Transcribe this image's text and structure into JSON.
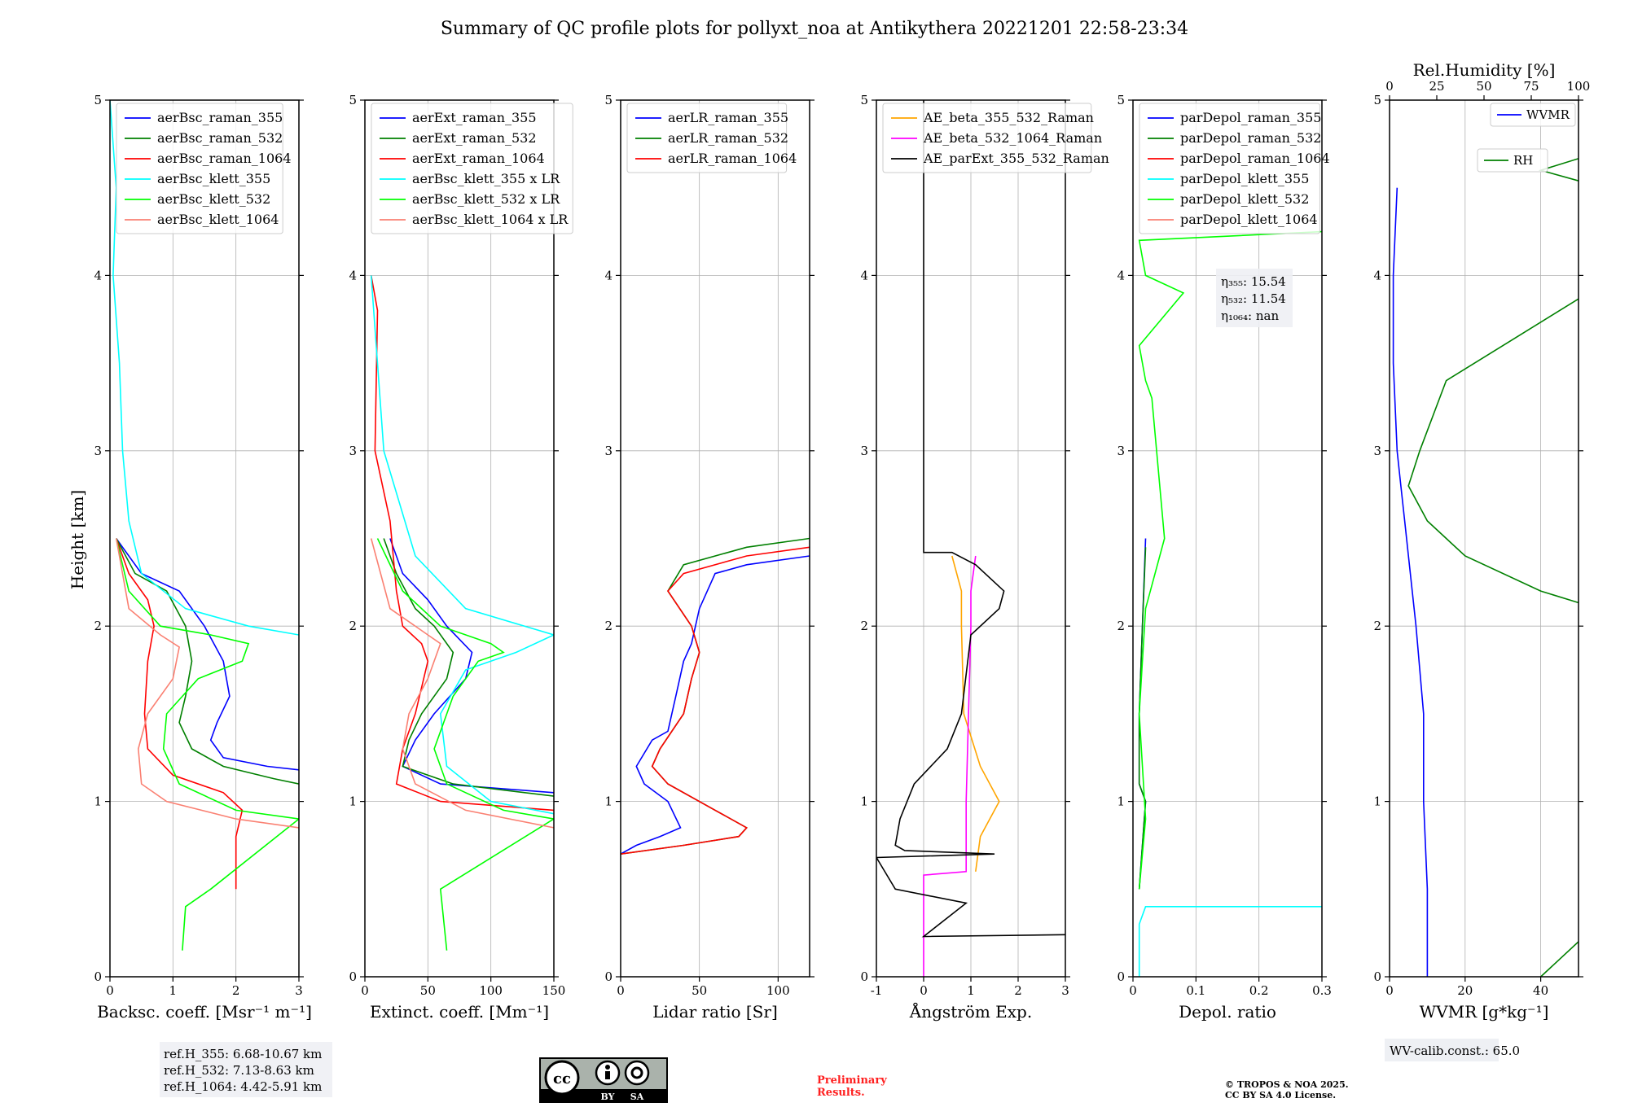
{
  "figure": {
    "title": "Summary of QC profile plots for pollyxt_noa at Antikythera 20221201 22:58-23:34",
    "ylabel": "Height [km]",
    "ref_heights": [
      "ref.H_355: 6.68-10.67 km",
      "ref.H_532: 7.13-8.63 km",
      "ref.H_1064: 4.42-5.91 km"
    ],
    "license_badge": {
      "cc": "cc",
      "by": "BY",
      "sa": "SA"
    },
    "preliminary": [
      "Preliminary",
      "Results."
    ],
    "copyright": [
      "© TROPOS & NOA 2025.",
      "CC BY SA 4.0 License."
    ],
    "wv_calib": "WV-calib.const.: 65.0",
    "eta_labels": [
      "η₃₅₅: 15.54",
      "η₅₃₂: 11.54",
      "η₁₀₆₄: nan"
    ],
    "colors": {
      "blue": "#0000ff",
      "green": "#008000",
      "red": "#ff0000",
      "cyan": "#00ffff",
      "lime": "#00ff00",
      "salmon": "#fa8072",
      "orange": "#ffa500",
      "magenta": "#ff00ff",
      "black": "#000000"
    }
  },
  "chart_data": [
    {
      "type": "line",
      "xlabel": "Backsc. coeff. [Msr⁻¹ m⁻¹]",
      "xlim": [
        0,
        3
      ],
      "ylim": [
        0,
        5
      ],
      "xticks": [
        0,
        1,
        2,
        3
      ],
      "yticks": [
        0,
        1,
        2,
        3,
        4,
        5
      ],
      "legend": "top-left",
      "series": [
        {
          "name": "aerBsc_raman_355",
          "color": "#0000ff",
          "x": [
            0.1,
            0.5,
            1.1,
            1.5,
            1.8,
            1.9,
            1.7,
            1.6,
            1.8,
            2.5,
            3.0
          ],
          "y": [
            2.5,
            2.3,
            2.2,
            2.0,
            1.8,
            1.6,
            1.45,
            1.35,
            1.25,
            1.2,
            1.18
          ]
        },
        {
          "name": "aerBsc_raman_532",
          "color": "#008000",
          "x": [
            0.1,
            0.4,
            0.9,
            1.2,
            1.3,
            1.2,
            1.1,
            1.3,
            1.8,
            2.6,
            3.0
          ],
          "y": [
            2.5,
            2.3,
            2.2,
            2.0,
            1.8,
            1.6,
            1.45,
            1.3,
            1.2,
            1.13,
            1.1
          ]
        },
        {
          "name": "aerBsc_raman_1064",
          "color": "#ff0000",
          "x": [
            0.1,
            0.3,
            0.6,
            0.7,
            0.6,
            0.55,
            0.6,
            1.0,
            1.8,
            2.1,
            2.0,
            2.0
          ],
          "y": [
            2.5,
            2.3,
            2.15,
            2.0,
            1.8,
            1.5,
            1.3,
            1.15,
            1.05,
            0.95,
            0.8,
            0.5
          ]
        },
        {
          "name": "aerBsc_klett_355",
          "color": "#00ffff",
          "x": [
            0.0,
            0.1,
            0.05,
            0.15,
            0.2,
            0.3,
            0.5,
            1.2,
            2.2,
            3.0
          ],
          "y": [
            5.0,
            4.5,
            4.0,
            3.5,
            3.0,
            2.6,
            2.3,
            2.1,
            2.0,
            1.95
          ]
        },
        {
          "name": "aerBsc_klett_532",
          "color": "#00ff00",
          "x": [
            0.1,
            0.3,
            0.8,
            1.6,
            2.2,
            2.1,
            1.4,
            0.9,
            0.85,
            1.1,
            2.0,
            3.0,
            1.6,
            1.2,
            1.15
          ],
          "y": [
            2.5,
            2.2,
            2.0,
            1.95,
            1.9,
            1.8,
            1.7,
            1.5,
            1.3,
            1.1,
            0.95,
            0.9,
            0.5,
            0.4,
            0.15
          ]
        },
        {
          "name": "aerBsc_klett_1064",
          "color": "#fa8072",
          "x": [
            0.1,
            0.3,
            0.8,
            1.1,
            1.0,
            0.6,
            0.45,
            0.5,
            0.9,
            2.0,
            3.0
          ],
          "y": [
            2.5,
            2.1,
            1.95,
            1.88,
            1.7,
            1.5,
            1.3,
            1.1,
            1.0,
            0.9,
            0.85
          ]
        }
      ],
      "annotation": ""
    },
    {
      "type": "line",
      "xlabel": "Extinct. coeff. [Mm⁻¹]",
      "xlim": [
        0,
        150
      ],
      "ylim": [
        0,
        5
      ],
      "xticks": [
        0,
        50,
        100,
        150
      ],
      "yticks": [
        0,
        1,
        2,
        3,
        4,
        5
      ],
      "legend": "top-left",
      "series": [
        {
          "name": "aerExt_raman_355",
          "color": "#0000ff",
          "x": [
            20,
            30,
            50,
            65,
            85,
            80,
            55,
            40,
            30,
            60,
            150
          ],
          "y": [
            2.5,
            2.3,
            2.15,
            2.0,
            1.85,
            1.7,
            1.5,
            1.35,
            1.2,
            1.1,
            1.05
          ]
        },
        {
          "name": "aerExt_raman_532",
          "color": "#008000",
          "x": [
            15,
            25,
            40,
            55,
            70,
            65,
            45,
            35,
            30,
            70,
            150
          ],
          "y": [
            2.5,
            2.3,
            2.1,
            2.0,
            1.85,
            1.7,
            1.5,
            1.35,
            1.2,
            1.1,
            1.03
          ]
        },
        {
          "name": "aerExt_raman_1064",
          "color": "#ff0000",
          "x": [
            5,
            10,
            8,
            20,
            25,
            30,
            45,
            50,
            40,
            30,
            25,
            60,
            150
          ],
          "y": [
            4.0,
            3.8,
            3.0,
            2.6,
            2.2,
            2.0,
            1.9,
            1.8,
            1.5,
            1.3,
            1.1,
            1.0,
            0.95
          ]
        },
        {
          "name": "aerBsc_klett_355 x LR",
          "color": "#00ffff",
          "x": [
            5,
            15,
            40,
            80,
            150,
            120,
            80,
            60,
            65,
            100,
            150
          ],
          "y": [
            4.0,
            3.0,
            2.4,
            2.1,
            1.95,
            1.85,
            1.75,
            1.5,
            1.2,
            1.0,
            0.93
          ]
        },
        {
          "name": "aerBsc_klett_532 x LR",
          "color": "#00ff00",
          "x": [
            10,
            30,
            60,
            100,
            110,
            90,
            70,
            55,
            65,
            110,
            150,
            60,
            65
          ],
          "y": [
            2.5,
            2.2,
            2.0,
            1.9,
            1.85,
            1.8,
            1.6,
            1.3,
            1.1,
            0.95,
            0.9,
            0.5,
            0.15
          ]
        },
        {
          "name": "aerBsc_klett_1064 x LR",
          "color": "#fa8072",
          "x": [
            5,
            20,
            50,
            60,
            50,
            35,
            30,
            40,
            80,
            150
          ],
          "y": [
            2.5,
            2.1,
            1.95,
            1.9,
            1.7,
            1.5,
            1.3,
            1.1,
            0.95,
            0.85
          ]
        }
      ],
      "annotation": ""
    },
    {
      "type": "line",
      "xlabel": "Lidar ratio [Sr]",
      "xlim": [
        0,
        120
      ],
      "ylim": [
        0,
        5
      ],
      "xticks": [
        0,
        50,
        100
      ],
      "yticks": [
        0,
        1,
        2,
        3,
        4,
        5
      ],
      "legend": "top-left",
      "series": [
        {
          "name": "aerLR_raman_355",
          "color": "#0000ff",
          "x": [
            0,
            10,
            25,
            38,
            30,
            15,
            10,
            20,
            30,
            35,
            40,
            45,
            50,
            60,
            80,
            120
          ],
          "y": [
            0.7,
            0.75,
            0.8,
            0.85,
            1.0,
            1.1,
            1.2,
            1.35,
            1.4,
            1.6,
            1.8,
            1.9,
            2.1,
            2.3,
            2.35,
            2.4
          ]
        },
        {
          "name": "aerLR_raman_532",
          "color": "#008000",
          "x": [
            0,
            40,
            75,
            80,
            60,
            30,
            20,
            25,
            40,
            45,
            50,
            45,
            30,
            40,
            80,
            120
          ],
          "y": [
            0.7,
            0.75,
            0.8,
            0.85,
            0.95,
            1.1,
            1.2,
            1.3,
            1.5,
            1.7,
            1.85,
            2.0,
            2.2,
            2.35,
            2.45,
            2.5
          ]
        },
        {
          "name": "aerLR_raman_1064",
          "color": "#ff0000",
          "x": [
            0,
            40,
            75,
            80,
            60,
            30,
            20,
            25,
            40,
            45,
            50,
            45,
            30,
            40,
            80,
            120
          ],
          "y": [
            0.7,
            0.75,
            0.8,
            0.85,
            0.95,
            1.1,
            1.2,
            1.3,
            1.5,
            1.7,
            1.85,
            2.0,
            2.2,
            2.3,
            2.4,
            2.45
          ]
        }
      ],
      "annotation": ""
    },
    {
      "type": "line",
      "xlabel": "Ångström Exp.",
      "xlim": [
        -1,
        3
      ],
      "ylim": [
        0,
        5
      ],
      "xticks": [
        -1,
        0,
        1,
        2,
        3
      ],
      "yticks": [
        0,
        1,
        2,
        3,
        4,
        5
      ],
      "legend": "top-left",
      "series": [
        {
          "name": "AE_beta_355_532_Raman",
          "color": "#ffa500",
          "x": [
            0.6,
            0.8,
            0.8,
            0.85,
            1.2,
            1.6,
            1.2,
            1.1
          ],
          "y": [
            2.4,
            2.2,
            2.0,
            1.5,
            1.2,
            1.0,
            0.8,
            0.6
          ]
        },
        {
          "name": "AE_beta_532_1064_Raman",
          "color": "#ff00ff",
          "x": [
            1.1,
            1.0,
            1.0,
            0.95,
            0.9,
            0.9,
            0.0,
            0.0
          ],
          "y": [
            2.4,
            2.2,
            2.0,
            1.5,
            1.0,
            0.6,
            0.58,
            0.0
          ]
        },
        {
          "name": "AE_parExt_355_532_Raman",
          "color": "#000000",
          "x": [
            0.0,
            0.0,
            0.6,
            1.1,
            1.7,
            1.6,
            1.0,
            0.8,
            0.5,
            -0.2,
            -0.5,
            -0.6,
            -0.4,
            1.5,
            -1.0,
            -0.6,
            0.9,
            0.0,
            3.0
          ],
          "y": [
            5.0,
            2.42,
            2.42,
            2.35,
            2.2,
            2.1,
            1.95,
            1.5,
            1.3,
            1.1,
            0.9,
            0.75,
            0.72,
            0.7,
            0.68,
            0.5,
            0.42,
            0.23,
            0.24
          ]
        }
      ],
      "annotation": ""
    },
    {
      "type": "line",
      "xlabel": "Depol. ratio",
      "xlim": [
        0,
        0.3
      ],
      "ylim": [
        0,
        5
      ],
      "xticks": [
        0.0,
        0.1,
        0.2,
        0.3
      ],
      "yticks": [
        0,
        1,
        2,
        3,
        4,
        5
      ],
      "legend": "top-left",
      "series": [
        {
          "name": "parDepol_raman_355",
          "color": "#0000ff",
          "x": [
            0.02,
            0.015,
            0.01,
            0.01,
            0.02,
            0.01
          ],
          "y": [
            2.5,
            2.0,
            1.5,
            1.1,
            1.0,
            0.5
          ]
        },
        {
          "name": "parDepol_raman_532",
          "color": "#008000",
          "x": [
            0.02,
            0.015,
            0.01,
            0.01,
            0.02,
            0.01
          ],
          "y": [
            2.45,
            2.0,
            1.5,
            1.1,
            1.0,
            0.5
          ]
        },
        {
          "name": "parDepol_raman_1064",
          "color": "#ff0000",
          "x": [],
          "y": []
        },
        {
          "name": "parDepol_klett_355",
          "color": "#00ffff",
          "x": [
            0.3,
            0.02,
            0.01,
            0.01
          ],
          "y": [
            0.4,
            0.4,
            0.3,
            0.0
          ]
        },
        {
          "name": "parDepol_klett_532",
          "color": "#00ff00",
          "x": [
            0.3,
            0.01,
            0.02,
            0.08,
            0.01,
            0.02,
            0.03,
            0.05,
            0.02,
            0.01,
            0.02,
            0.01
          ],
          "y": [
            4.25,
            4.2,
            4.0,
            3.9,
            3.6,
            3.4,
            3.3,
            2.5,
            2.1,
            1.5,
            0.9,
            0.5
          ]
        },
        {
          "name": "parDepol_klett_1064",
          "color": "#fa8072",
          "x": [],
          "y": []
        }
      ],
      "annotation": ""
    },
    {
      "type": "line",
      "xlabel": "WVMR [g*kg⁻¹]",
      "x2label": "Rel.Humidity [%]",
      "xlim": [
        0,
        50
      ],
      "ylim": [
        0,
        5
      ],
      "x2lim": [
        0,
        100
      ],
      "xticks": [
        0,
        20,
        40
      ],
      "x2ticks": [
        0,
        25,
        50,
        75,
        100
      ],
      "yticks": [
        0,
        1,
        2,
        3,
        4,
        5
      ],
      "legend": "top-right",
      "series": [
        {
          "name": "WVMR",
          "color": "#0000ff",
          "x": [
            10,
            10,
            9,
            9,
            7,
            5,
            4,
            3,
            2,
            1,
            1,
            2
          ],
          "y": [
            0.0,
            0.5,
            1.0,
            1.5,
            2.0,
            2.4,
            2.6,
            2.8,
            3.0,
            3.5,
            4.0,
            4.5
          ]
        },
        {
          "name": "RH",
          "color": "#008000",
          "x": [
            40,
            50,
            95,
            85,
            70,
            90,
            70,
            40,
            20,
            10,
            5,
            8,
            15,
            30,
            60,
            90,
            40,
            100
          ],
          "y": [
            0.0,
            0.2,
            0.9,
            1.2,
            1.5,
            1.8,
            2.0,
            2.2,
            2.4,
            2.6,
            2.8,
            3.0,
            3.4,
            3.6,
            4.0,
            4.3,
            4.6,
            5.0
          ]
        }
      ],
      "annotation": ""
    }
  ]
}
